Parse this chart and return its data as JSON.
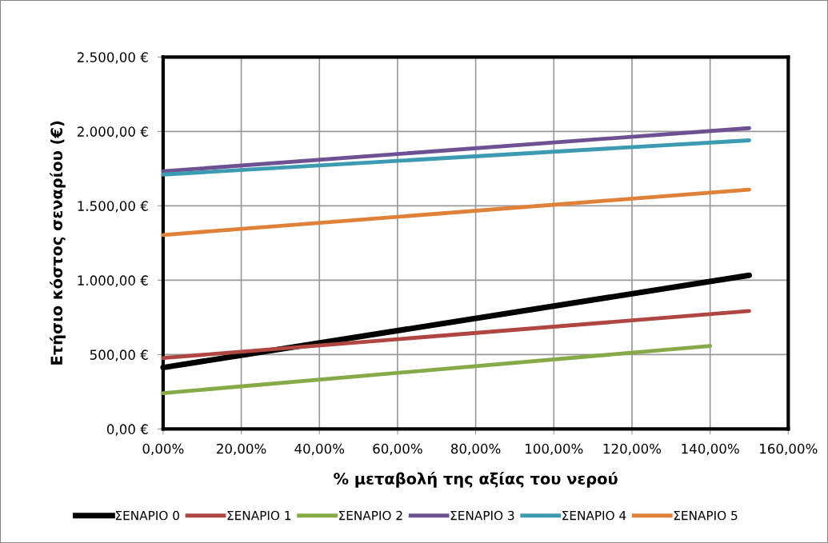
{
  "chart_data": {
    "type": "line",
    "xlabel": "% μεταβολή της αξίας του νερού",
    "ylabel": "Ετήσιο κόστος σεναρίου (€)",
    "x": [
      0,
      150
    ],
    "series": [
      {
        "name": "ΣΕΝΑΡΙΟ 0",
        "color": "#000000",
        "values": [
          413,
          1033
        ]
      },
      {
        "name": "ΣΕΝΑΡΙΟ 1",
        "color": "#b04641",
        "values": [
          477,
          793
        ]
      },
      {
        "name": "ΣΕΝΑΡΙΟ 2",
        "color": "#86aa48",
        "x": [
          0,
          140
        ],
        "values": [
          241,
          558
        ]
      },
      {
        "name": "ΣΕΝΑΡΙΟ 3",
        "color": "#6e5192",
        "values": [
          1732,
          2022
        ]
      },
      {
        "name": "ΣΕΝΑΡΙΟ 4",
        "color": "#3c9ab2",
        "values": [
          1710,
          1940
        ]
      },
      {
        "name": "ΣΕΝΑΡΙΟ 5",
        "color": "#e0813a",
        "values": [
          1304,
          1609
        ]
      }
    ],
    "xlim": [
      0,
      160
    ],
    "xticks": [
      {
        "value": 0,
        "label": "0,00%"
      },
      {
        "value": 20,
        "label": "20,00%"
      },
      {
        "value": 40,
        "label": "40,00%"
      },
      {
        "value": 60,
        "label": "60,00%"
      },
      {
        "value": 80,
        "label": "80,00%"
      },
      {
        "value": 100,
        "label": "100,00%"
      },
      {
        "value": 120,
        "label": "120,00%"
      },
      {
        "value": 140,
        "label": "140,00%"
      },
      {
        "value": 160,
        "label": "160,00%"
      }
    ],
    "ylim": [
      0,
      2500
    ],
    "yticks": [
      {
        "value": 0,
        "label": "0,00 €"
      },
      {
        "value": 500,
        "label": "500,00 €"
      },
      {
        "value": 1000,
        "label": "1.000,00 €"
      },
      {
        "value": 1500,
        "label": "1.500,00 €"
      },
      {
        "value": 2000,
        "label": "2.000,00 €"
      },
      {
        "value": 2500,
        "label": "2.500,00 €"
      }
    ],
    "grid": true,
    "legend": "bottom",
    "marker": "none",
    "line_style": "solid"
  }
}
